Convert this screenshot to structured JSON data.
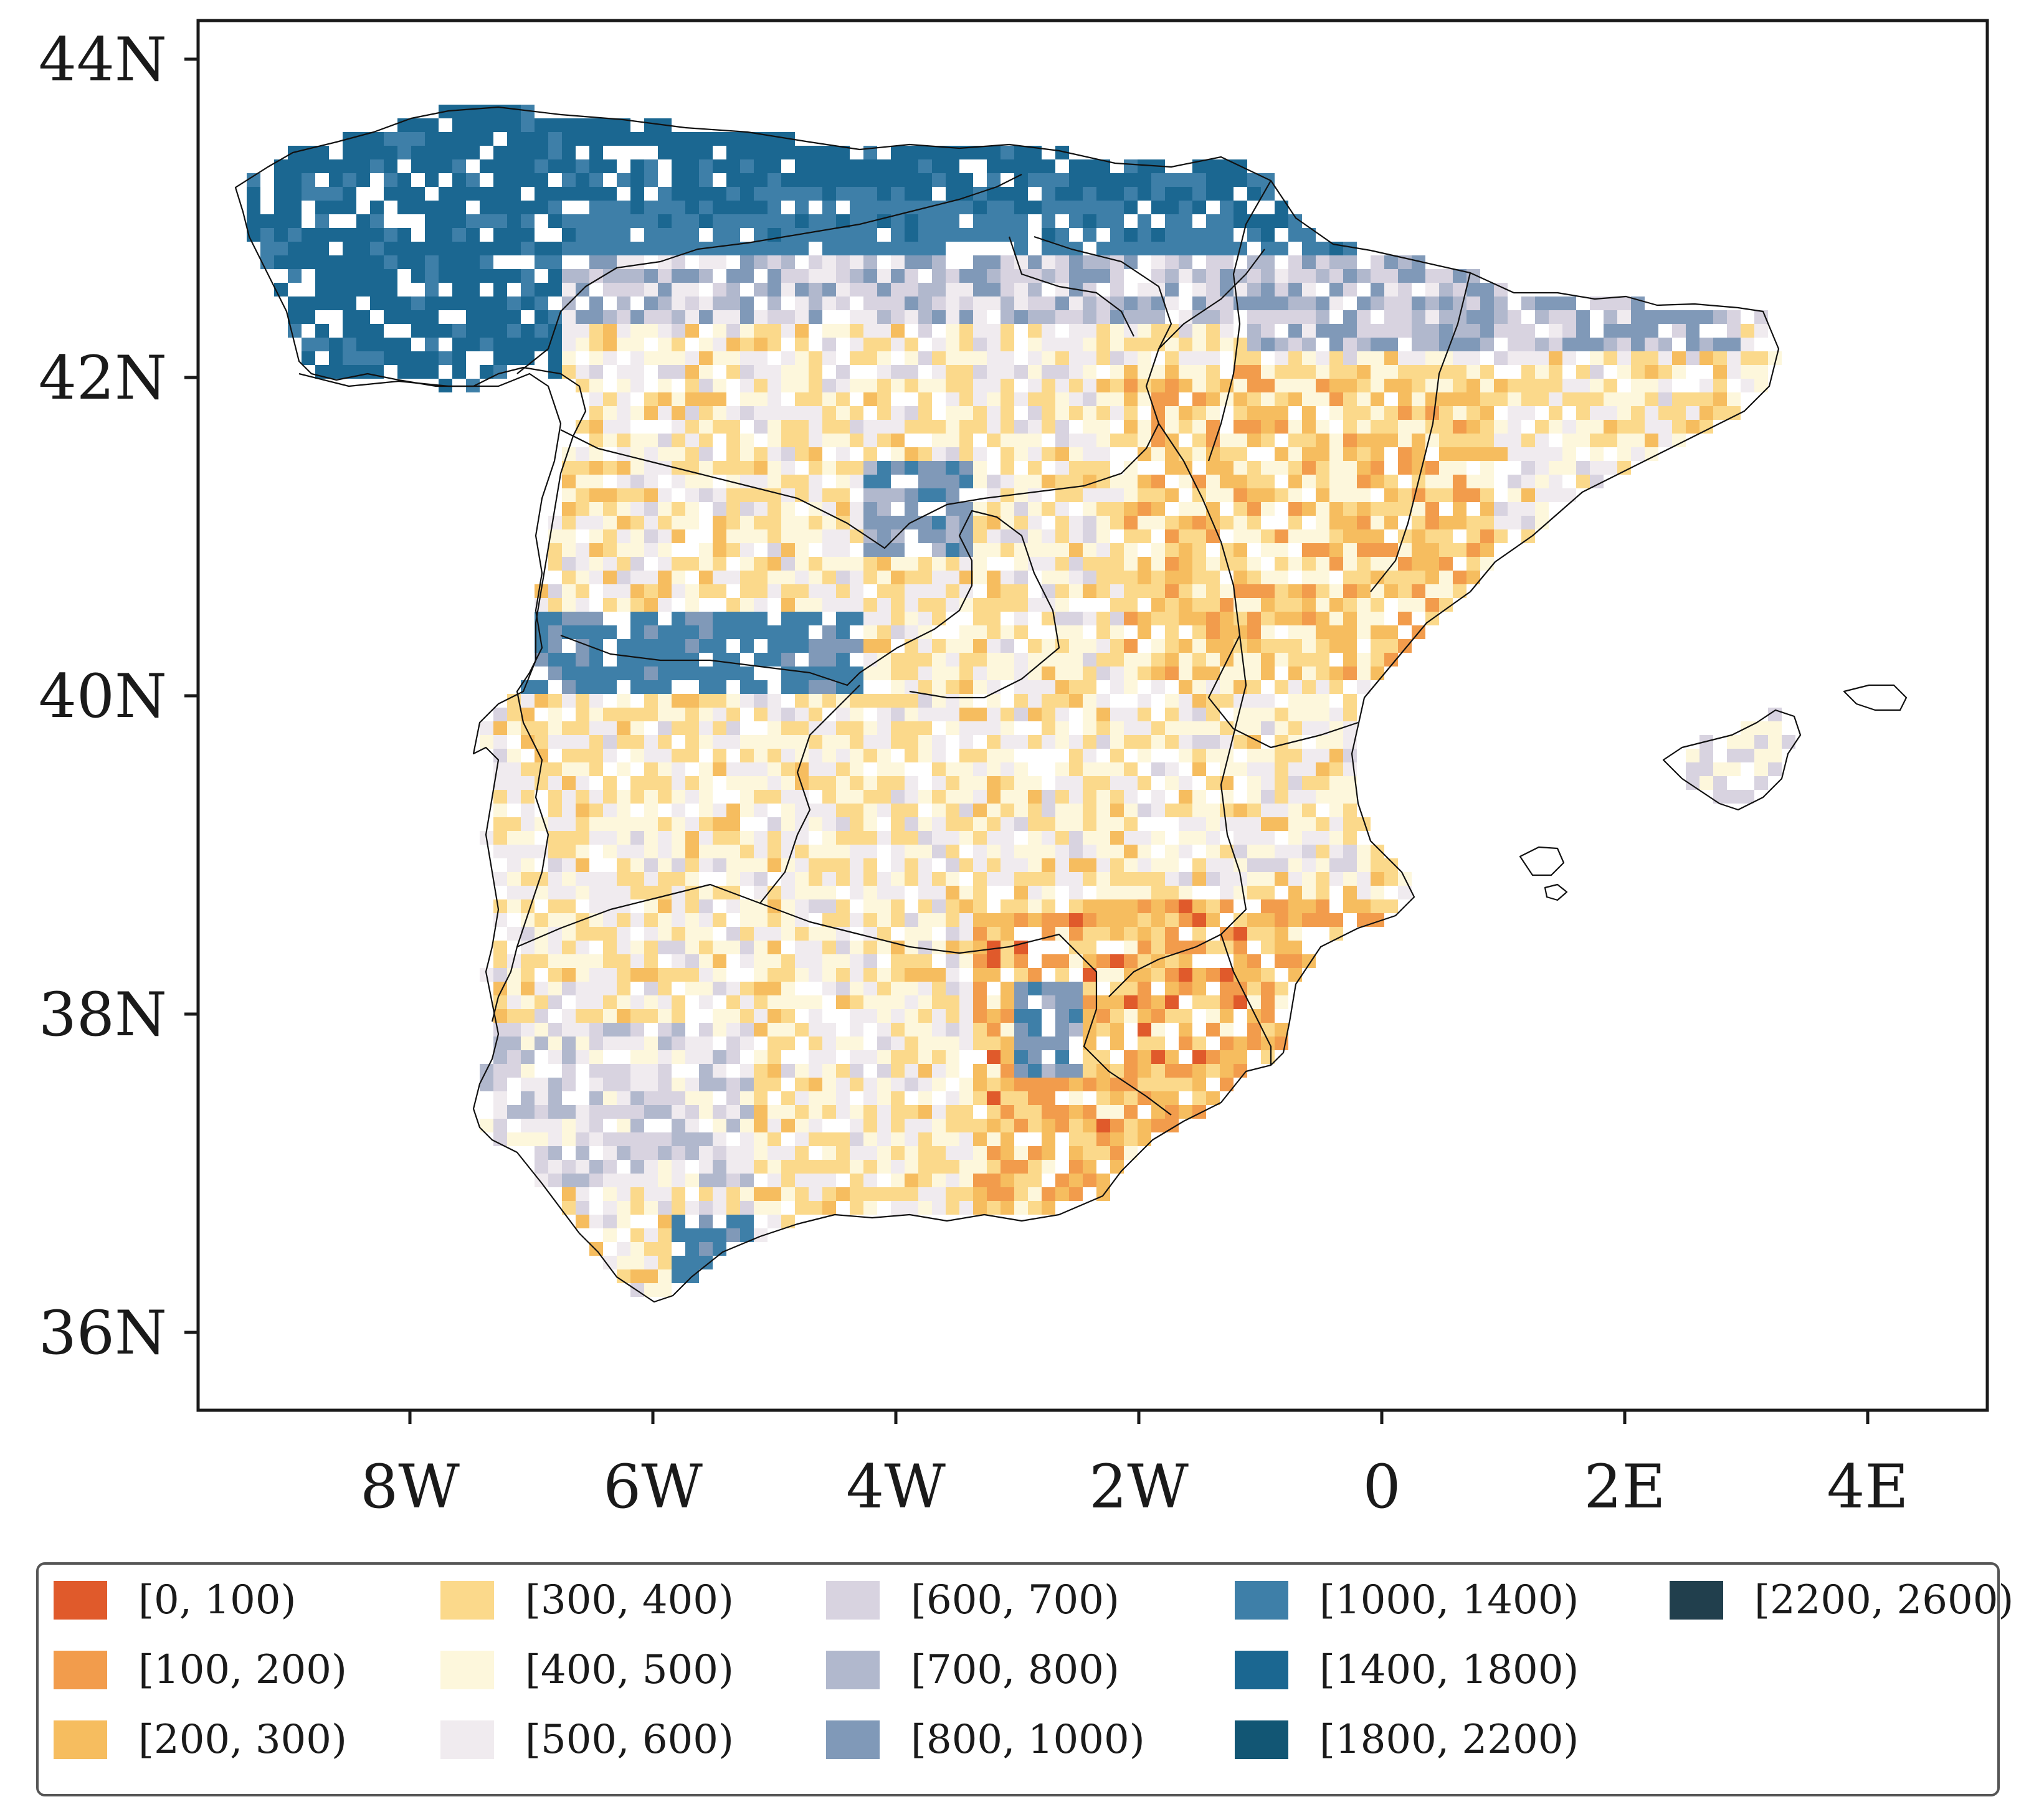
{
  "map": {
    "region": "Iberian Peninsula and Balearic Islands",
    "lon_range": [
      -9.8,
      5.0
    ],
    "lat_range": [
      35.5,
      44.3
    ],
    "x_ticks": [
      "8W",
      "6W",
      "4W",
      "2W",
      "0",
      "2E",
      "4E"
    ],
    "x_tick_values": [
      -8,
      -6,
      -4,
      -2,
      0,
      2,
      4
    ],
    "y_ticks": [
      "44N",
      "42N",
      "40N",
      "38N",
      "36N"
    ],
    "y_tick_values": [
      44,
      42,
      40,
      38,
      36
    ]
  },
  "legend": {
    "entries": [
      {
        "label": "[0, 100)",
        "color": "#e05a2b"
      },
      {
        "label": "[100, 200)",
        "color": "#f29c4c"
      },
      {
        "label": "[200, 300)",
        "color": "#f6bd5f"
      },
      {
        "label": "[300, 400)",
        "color": "#fbd98b"
      },
      {
        "label": "[400, 500)",
        "color": "#fdf7dc"
      },
      {
        "label": "[500, 600)",
        "color": "#f0ebef"
      },
      {
        "label": "[600, 700)",
        "color": "#d8d3e0"
      },
      {
        "label": "[700, 800)",
        "color": "#b1b8cd"
      },
      {
        "label": "[800, 1000)",
        "color": "#8099b8"
      },
      {
        "label": "[1000, 1400)",
        "color": "#3e7fa8"
      },
      {
        "label": "[1400, 1800)",
        "color": "#1b6791"
      },
      {
        "label": "[1800, 2200)",
        "color": "#125674"
      },
      {
        "label": "[2200, 2600)",
        "color": "#213f4d"
      }
    ]
  }
}
